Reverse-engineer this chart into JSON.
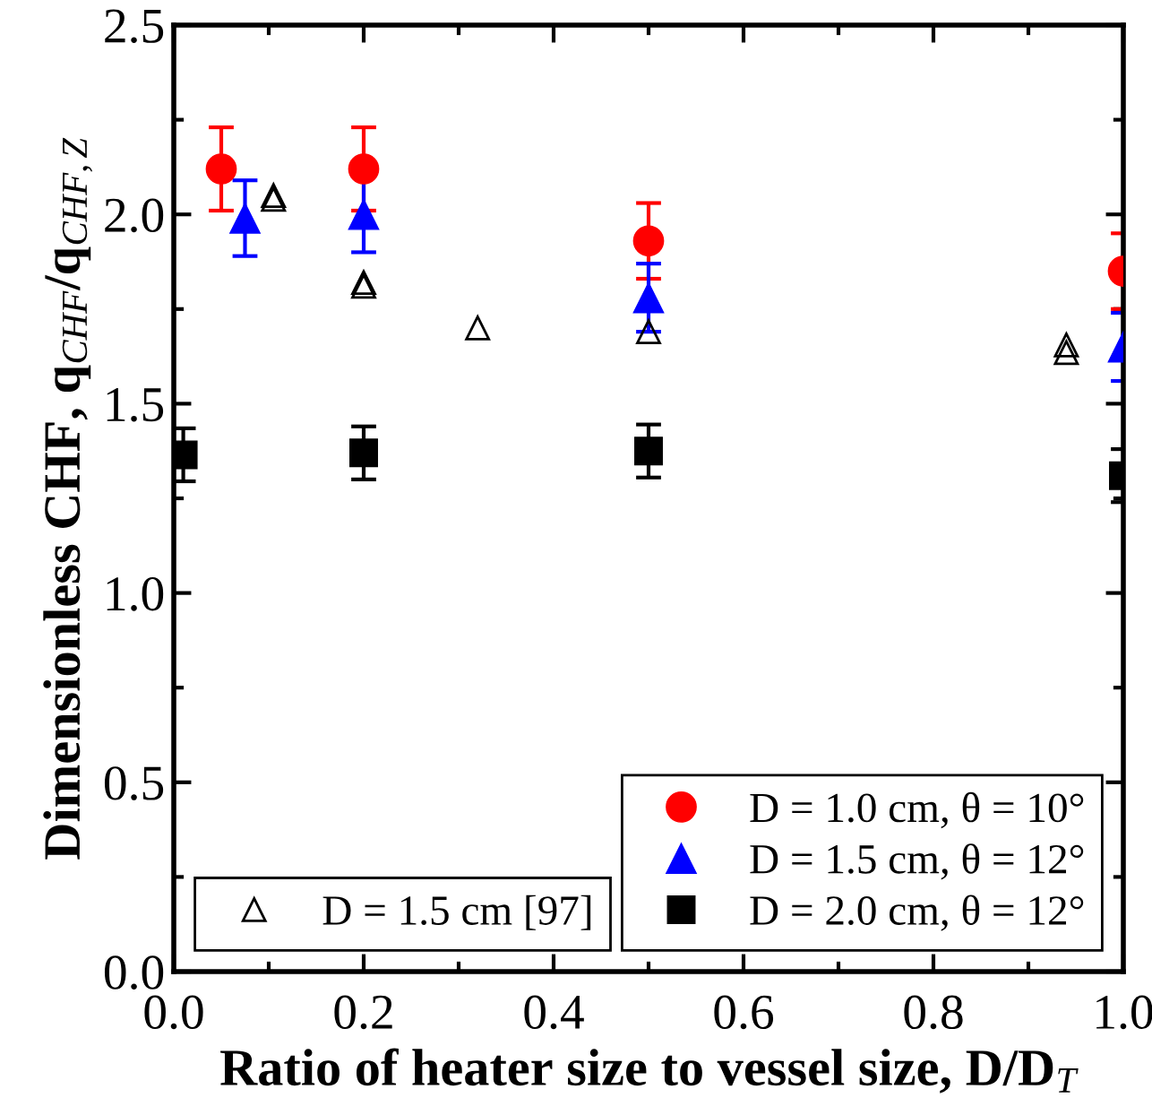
{
  "chart_data": {
    "type": "scatter",
    "xlabel": "Ratio of heater size to vessel size, D/D$_{T}$",
    "ylabel": "Dimensionless CHF, q$_{CHF}$/q$_{CHF,Z}$",
    "xlim": [
      0,
      1.0
    ],
    "xticks": [
      {
        "value": 0,
        "label": "0.0"
      },
      0.2,
      0.4,
      0.6,
      0.8,
      {
        "value": 1,
        "label": "1.0"
      }
    ],
    "ylim": [
      0,
      2.5
    ],
    "yticks": [
      {
        "value": 0,
        "label": "0.0"
      },
      0.5,
      {
        "value": 1,
        "label": "1.0"
      },
      1.5,
      {
        "value": 2,
        "label": "2.0"
      },
      2.5
    ],
    "grid": false,
    "legend": "bottom right",
    "series": [
      {
        "name": "D = 1.0 cm, θ = 10°",
        "color": "#ff0000",
        "marker": "circle",
        "x": [
          0.05,
          0.2,
          0.5,
          1.0
        ],
        "values": [
          2.12,
          2.12,
          1.93,
          1.85
        ],
        "errors": [
          0.11,
          0.11,
          0.1,
          0.1
        ]
      },
      {
        "name": "D = 1.5 cm, θ = 12°",
        "color": "#0000ff",
        "marker": "triangle",
        "x": [
          0.075,
          0.2,
          0.5,
          1.0
        ],
        "values": [
          1.99,
          2.0,
          1.78,
          1.65
        ],
        "errors": [
          0.1,
          0.1,
          0.09,
          0.09
        ]
      },
      {
        "name": "D = 2.0 cm, θ = 12°",
        "color": "#000000",
        "marker": "square",
        "x": [
          0.01,
          0.2,
          0.5,
          1.0
        ],
        "values": [
          1.365,
          1.37,
          1.375,
          1.31
        ],
        "errors": [
          0.07,
          0.07,
          0.07,
          0.07
        ]
      },
      {
        "name": "D = 1.5 cm [97]",
        "color": "#000000",
        "marker": "triangle",
        "x": [
          0.105,
          0.105,
          0.2,
          0.2,
          0.32,
          0.5,
          0.94,
          0.94
        ],
        "values": [
          2.05,
          2.04,
          1.82,
          1.81,
          1.7,
          1.69,
          1.655,
          1.635
        ]
      }
    ]
  }
}
